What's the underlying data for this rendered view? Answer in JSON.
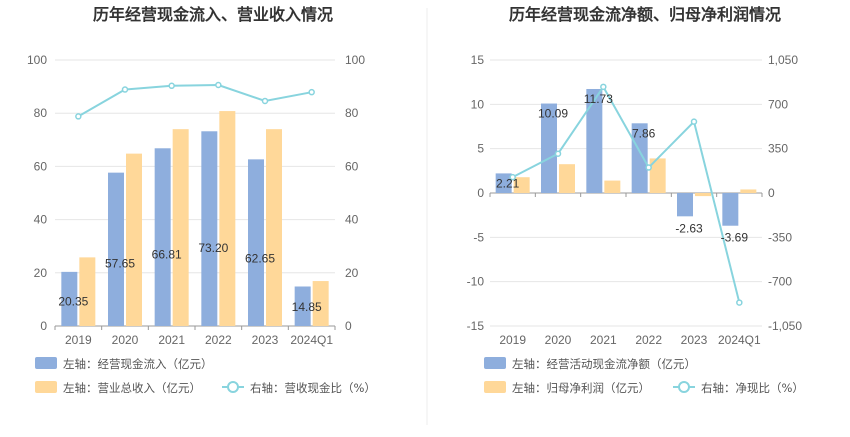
{
  "colors": {
    "bar_left": "#8eaedd",
    "bar_right": "#ffd899",
    "line": "#88d4de",
    "grid": "#e6e6e6",
    "divider": "#eeeeee"
  },
  "chart_data": [
    {
      "type": "bar",
      "title": "历年经营现金流入、营业收入情况",
      "categories": [
        "2019",
        "2020",
        "2021",
        "2022",
        "2023",
        "2024Q1"
      ],
      "left_axis": {
        "ticks": [
          "0",
          "20",
          "40",
          "60",
          "80",
          "100"
        ],
        "ylim": [
          0,
          100
        ]
      },
      "right_axis": {
        "ticks": [
          "0",
          "20",
          "40",
          "60",
          "80",
          "100"
        ],
        "ylim": [
          0,
          100
        ]
      },
      "series": [
        {
          "name": "左轴：经营现金流入（亿元）",
          "axis": "left",
          "kind": "bar",
          "values": [
            20.35,
            57.65,
            66.81,
            73.2,
            62.65,
            14.85
          ],
          "labels": [
            "20.35",
            "57.65",
            "66.81",
            "73.20",
            "62.65",
            "14.85"
          ]
        },
        {
          "name": "左轴：营业总收入（亿元）",
          "axis": "left",
          "kind": "bar",
          "values": [
            25.8,
            64.8,
            74.0,
            80.8,
            74.0,
            16.9
          ]
        },
        {
          "name": "右轴：营收现金比（%）",
          "axis": "right",
          "kind": "line",
          "values": [
            78.8,
            88.9,
            90.3,
            90.6,
            84.6,
            87.9
          ]
        }
      ]
    },
    {
      "type": "bar",
      "title": "历年经营现金流净额、归母净利润情况",
      "categories": [
        "2019",
        "2020",
        "2021",
        "2022",
        "2023",
        "2024Q1"
      ],
      "left_axis": {
        "ticks": [
          "-15",
          "-10",
          "-5",
          "0",
          "5",
          "10",
          "15"
        ],
        "ylim": [
          -15,
          15
        ]
      },
      "right_axis": {
        "ticks": [
          "-1,050",
          "-700",
          "-350",
          "0",
          "350",
          "700",
          "1,050"
        ],
        "ylim": [
          -1050,
          1050
        ]
      },
      "series": [
        {
          "name": "左轴：经营活动现金流净额（亿元）",
          "axis": "left",
          "kind": "bar",
          "values": [
            2.21,
            10.09,
            11.73,
            7.86,
            -2.63,
            -3.69
          ],
          "labels": [
            "2.21",
            "10.09",
            "11.73",
            "7.86",
            "-2.63",
            "-3.69"
          ]
        },
        {
          "name": "左轴：归母净利润（亿元）",
          "axis": "left",
          "kind": "bar",
          "values": [
            1.78,
            3.25,
            1.4,
            3.9,
            -0.35,
            0.4
          ]
        },
        {
          "name": "右轴：净现比（%）",
          "axis": "right",
          "kind": "line",
          "values": [
            125,
            310,
            838,
            201,
            563,
            -865
          ]
        }
      ]
    }
  ]
}
